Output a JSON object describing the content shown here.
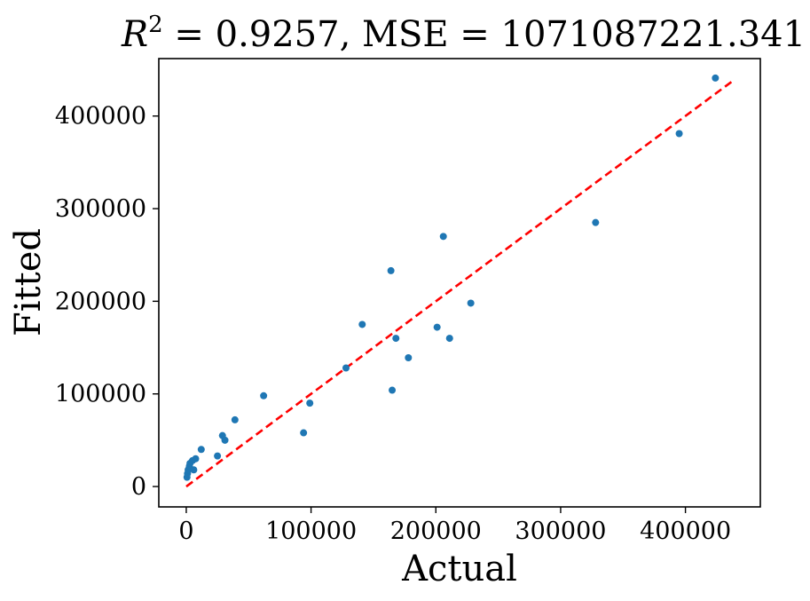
{
  "chart_data": {
    "type": "scatter",
    "title": {
      "symbol": "R",
      "superscript": "2",
      "r2_text": " = 0.9257, MSE = 1071087221.3411"
    },
    "xlabel": "Actual",
    "ylabel": "Fitted",
    "xlim": [
      -22000,
      460000
    ],
    "ylim": [
      -22000,
      462000
    ],
    "xticks": [
      0,
      100000,
      200000,
      300000,
      400000
    ],
    "xtick_labels": [
      "0",
      "100000",
      "200000",
      "300000",
      "400000"
    ],
    "yticks": [
      0,
      100000,
      200000,
      300000,
      400000
    ],
    "ytick_labels": [
      "0",
      "100000",
      "200000",
      "300000",
      "400000"
    ],
    "grid": false,
    "colors": {
      "points": "#1f77b4",
      "reference_line": "#ff0000"
    },
    "reference_line": {
      "x": [
        0,
        437000
      ],
      "y": [
        0,
        437000
      ],
      "style": "dashed"
    },
    "points": [
      {
        "x": 600,
        "y": 10000
      },
      {
        "x": 1000,
        "y": 14000
      },
      {
        "x": 1500,
        "y": 18000
      },
      {
        "x": 2500,
        "y": 22000
      },
      {
        "x": 3000,
        "y": 25000
      },
      {
        "x": 5000,
        "y": 28000
      },
      {
        "x": 6000,
        "y": 18000
      },
      {
        "x": 7500,
        "y": 30000
      },
      {
        "x": 12000,
        "y": 40000
      },
      {
        "x": 25000,
        "y": 33000
      },
      {
        "x": 29000,
        "y": 55000
      },
      {
        "x": 31000,
        "y": 50000
      },
      {
        "x": 39000,
        "y": 72000
      },
      {
        "x": 62000,
        "y": 98000
      },
      {
        "x": 94000,
        "y": 58000
      },
      {
        "x": 99000,
        "y": 90000
      },
      {
        "x": 128000,
        "y": 128000
      },
      {
        "x": 141000,
        "y": 175000
      },
      {
        "x": 164000,
        "y": 233000
      },
      {
        "x": 165000,
        "y": 104000
      },
      {
        "x": 168000,
        "y": 160000
      },
      {
        "x": 178000,
        "y": 139000
      },
      {
        "x": 201000,
        "y": 172000
      },
      {
        "x": 206000,
        "y": 270000
      },
      {
        "x": 211000,
        "y": 160000
      },
      {
        "x": 228000,
        "y": 198000
      },
      {
        "x": 328000,
        "y": 285000
      },
      {
        "x": 395000,
        "y": 381000
      },
      {
        "x": 424000,
        "y": 441000
      }
    ]
  }
}
